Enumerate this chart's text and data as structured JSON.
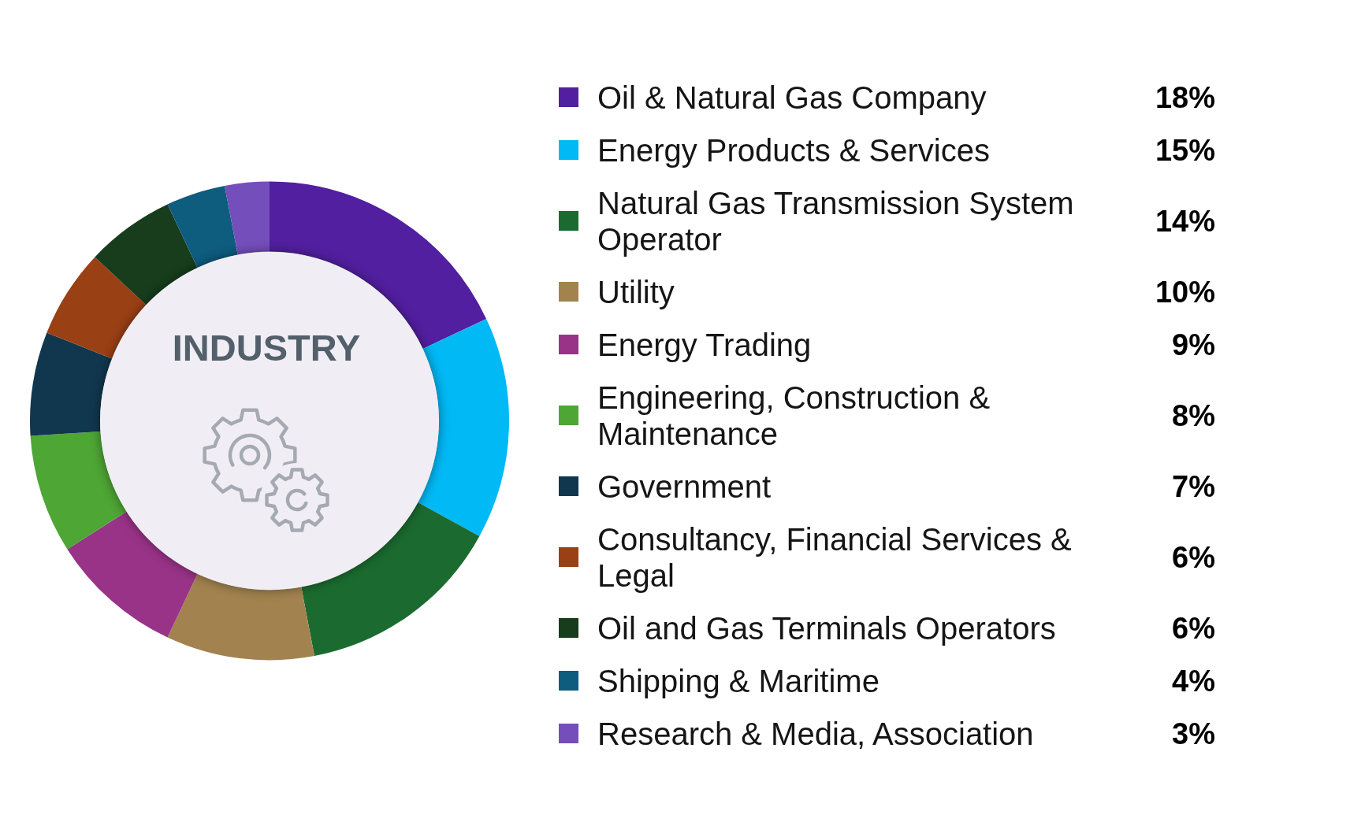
{
  "chart_data": {
    "type": "donut",
    "title": "INDUSTRY",
    "categories": [
      "Oil & Natural Gas Company",
      "Energy Products & Services",
      "Natural Gas Transmission System Operator",
      "Utility",
      "Energy Trading",
      "Engineering, Construction & Maintenance",
      "Government",
      "Consultancy, Financial Services & Legal",
      "Oil and Gas Terminals Operators",
      "Shipping & Maritime",
      "Research & Media, Association"
    ],
    "values": [
      18,
      15,
      14,
      10,
      9,
      8,
      7,
      6,
      6,
      4,
      3
    ],
    "colors": [
      "#521fa0",
      "#00b9f5",
      "#1b6b30",
      "#a2834f",
      "#993388",
      "#4ea635",
      "#11374f",
      "#9a4015",
      "#173d1c",
      "#0e5c7e",
      "#744ebb"
    ],
    "value_labels": [
      "18%",
      "15%",
      "14%",
      "10%",
      "9%",
      "8%",
      "7%",
      "6%",
      "6%",
      "4%",
      "3%"
    ],
    "legend": "right"
  }
}
